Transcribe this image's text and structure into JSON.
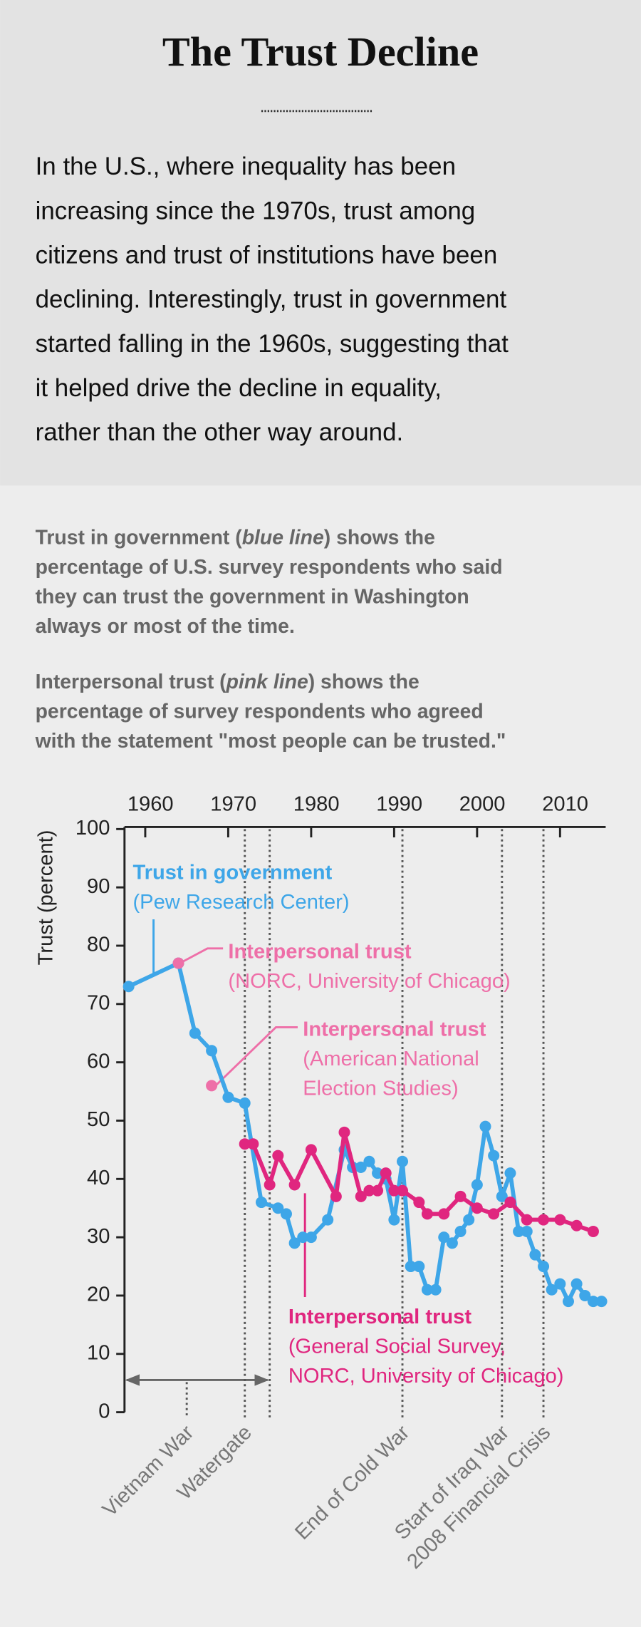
{
  "header": {
    "title": "The Trust Decline",
    "intro": [
      "In the U.S., where inequality has been",
      "increasing since the 1970s, trust among",
      "citizens and trust of institutions have been",
      "declining. Interestingly, trust in government",
      "started falling in the 1960s, suggesting that",
      "it helped drive the decline in equality,",
      "rather than the other way around."
    ]
  },
  "notes": [
    [
      [
        "Trust in government (",
        "blue line",
        ") shows the"
      ],
      [
        "percentage of U.S. survey respondents who said"
      ],
      [
        "they can trust the government in Washington"
      ],
      [
        "always or most of the time."
      ]
    ],
    [
      [
        "Interpersonal trust (",
        "pink line",
        ") shows the"
      ],
      [
        "percentage of survey respondents who agreed"
      ],
      [
        "with the statement \"most people can be trusted.\""
      ]
    ]
  ],
  "chart_data": {
    "type": "line",
    "ylabel": "Trust (percent)",
    "xlim": [
      1957.5,
      2015.5
    ],
    "ylim": [
      0,
      100
    ],
    "xticks": [
      1960,
      1970,
      1980,
      1990,
      2000,
      2010
    ],
    "yticks": [
      0,
      10,
      20,
      30,
      40,
      50,
      60,
      70,
      80,
      90,
      100
    ],
    "series": [
      {
        "name": "Trust in government",
        "source": [
          "(Pew Research Center)"
        ],
        "color": "#3ea6e8",
        "x": [
          1958,
          1964,
          1966,
          1968,
          1970,
          1972,
          1974,
          1976,
          1977,
          1978,
          1979,
          1980,
          1982,
          1984,
          1985,
          1986,
          1987,
          1988,
          1989,
          1990,
          1991,
          1992,
          1993,
          1994,
          1995,
          1996,
          1997,
          1998,
          1999,
          2000,
          2001,
          2002,
          2003,
          2004,
          2005,
          2006,
          2007,
          2008,
          2009,
          2010,
          2011,
          2012,
          2013,
          2014,
          2015
        ],
        "values": [
          73,
          77,
          65,
          62,
          54,
          53,
          36,
          35,
          34,
          29,
          30,
          30,
          33,
          45,
          42,
          42,
          43,
          41,
          40,
          33,
          43,
          25,
          25,
          21,
          21,
          30,
          29,
          31,
          33,
          39,
          49,
          44,
          37,
          41,
          31,
          31,
          27,
          25,
          21,
          22,
          19,
          22,
          20,
          19,
          19
        ]
      },
      {
        "name": "Interpersonal trust",
        "source": [
          "(NORC, University of Chicago)"
        ],
        "color": "#ee6fa8",
        "x": [
          1964
        ],
        "values": [
          77
        ]
      },
      {
        "name": "Interpersonal trust",
        "source": [
          "(American National",
          "Election Studies)"
        ],
        "color": "#ee6fa8",
        "x": [
          1968
        ],
        "values": [
          56
        ]
      },
      {
        "name": "Interpersonal trust",
        "source": [
          "(General Social Survey,",
          "NORC, University of Chicago)"
        ],
        "color": "#e0267f",
        "x": [
          1972,
          1973,
          1975,
          1976,
          1978,
          1980,
          1983,
          1984,
          1986,
          1987,
          1988,
          1989,
          1990,
          1991,
          1993,
          1994,
          1996,
          1998,
          2000,
          2002,
          2004,
          2006,
          2008,
          2010,
          2012,
          2014
        ],
        "values": [
          46,
          46,
          39,
          44,
          39,
          45,
          37,
          48,
          37,
          38,
          38,
          41,
          38,
          38,
          36,
          34,
          34,
          37,
          35,
          34,
          36,
          33,
          33,
          33,
          32,
          31
        ]
      }
    ],
    "events": [
      {
        "label": "Vietnam War",
        "x": [
          1965
        ],
        "span": [
          1957.5,
          1975
        ],
        "full_height": false
      },
      {
        "label": "Watergate",
        "x": [
          1972,
          1975
        ],
        "full_height": true
      },
      {
        "label": "End of Cold War",
        "x": [
          1991
        ],
        "full_height": true
      },
      {
        "label": "Start of Iraq War",
        "x": [
          2003
        ],
        "full_height": true
      },
      {
        "label": "2008 Financial Crisis",
        "x": [
          2008
        ],
        "full_height": true
      }
    ]
  }
}
